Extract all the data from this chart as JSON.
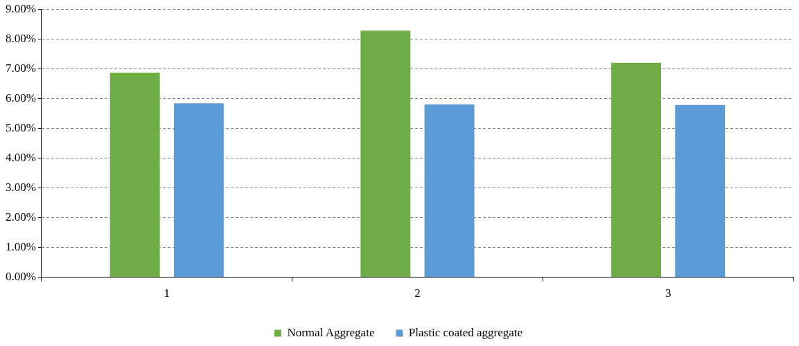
{
  "chart_data": {
    "type": "bar",
    "categories": [
      "1",
      "2",
      "3"
    ],
    "series": [
      {
        "name": "Normal Aggregate",
        "color": "#70ad47",
        "values": [
          6.87,
          8.28,
          7.2
        ]
      },
      {
        "name": "Plastic coated aggregate",
        "color": "#5b9bd5",
        "values": [
          5.84,
          5.8,
          5.78
        ]
      }
    ],
    "ylim": [
      0,
      9
    ],
    "yticks": [
      {
        "value": 0,
        "label": "0.00%"
      },
      {
        "value": 1,
        "label": "1.00%"
      },
      {
        "value": 2,
        "label": "2.00%"
      },
      {
        "value": 3,
        "label": "3.00%"
      },
      {
        "value": 4,
        "label": "4.00%"
      },
      {
        "value": 5,
        "label": "5.00%"
      },
      {
        "value": 6,
        "label": "6.00%"
      },
      {
        "value": 7,
        "label": "7.00%"
      },
      {
        "value": 8,
        "label": "8.00%"
      },
      {
        "value": 9,
        "label": "9.00%"
      }
    ],
    "grid": "y",
    "legend": "bottom"
  }
}
